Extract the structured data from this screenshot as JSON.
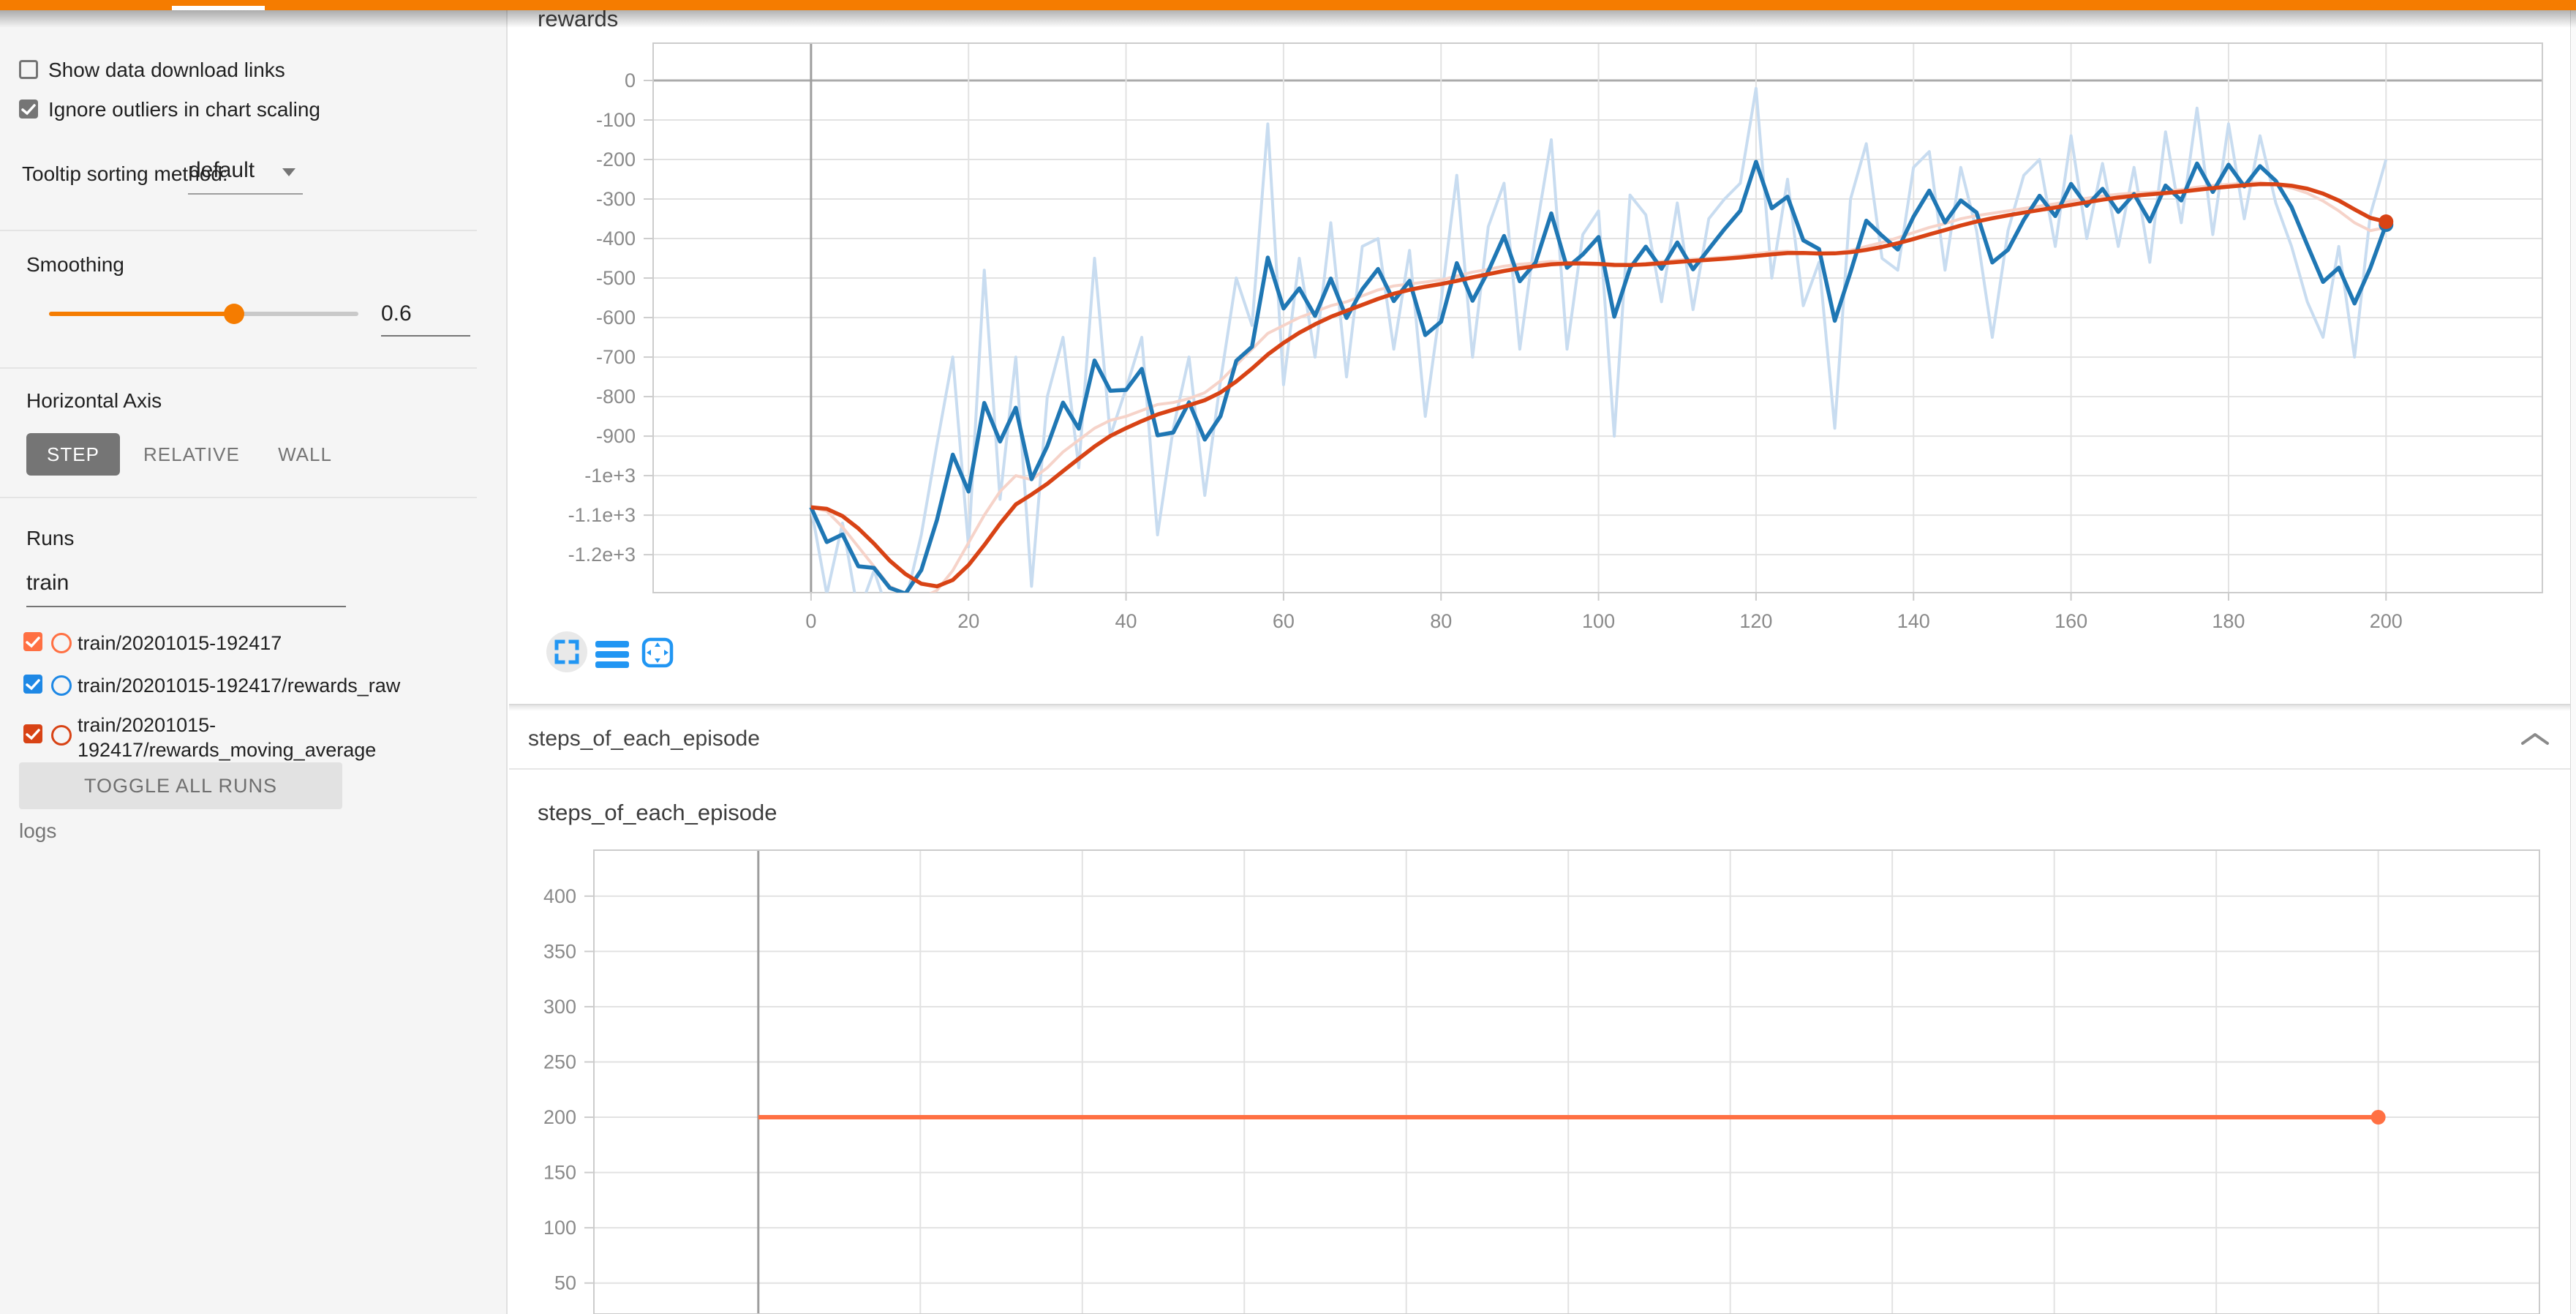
{
  "app": {
    "accent_color": "#f57c00"
  },
  "sidebar": {
    "checkboxes": [
      {
        "label": "Show data download links",
        "checked": false
      },
      {
        "label": "Ignore outliers in chart scaling",
        "checked": true
      }
    ],
    "tooltip_sorting": {
      "label": "Tooltip sorting method:",
      "value": "default"
    },
    "smoothing": {
      "label": "Smoothing",
      "value": "0.6"
    },
    "horizontal_axis": {
      "label": "Horizontal Axis",
      "options": [
        "STEP",
        "RELATIVE",
        "WALL"
      ],
      "selected": "STEP"
    },
    "runs": {
      "label": "Runs",
      "filter_value": "train",
      "items": [
        {
          "label": "train/20201015-192417",
          "color": "#ff7043",
          "checked": true
        },
        {
          "label": "train/20201015-192417/rewards_raw",
          "color": "#1e88e5",
          "checked": true
        },
        {
          "label": "train/20201015-192417/rewards_moving_average",
          "color": "#d84315",
          "checked": true
        }
      ],
      "toggle_all_label": "TOGGLE ALL RUNS",
      "footer": "logs"
    }
  },
  "main": {
    "section_header": "steps_of_each_episode"
  },
  "chart_data": [
    {
      "type": "line",
      "title": "rewards",
      "xlabel": "step",
      "ylabel": "",
      "xlim": [
        -20.05,
        219.85
      ],
      "ylim": [
        -1296,
        94.4
      ],
      "grid": true,
      "smoothing": 0.6,
      "x_dark": 0,
      "y_dark": 0,
      "x_tick_values": [
        0,
        20,
        40,
        60,
        80,
        100,
        120,
        140,
        160,
        180,
        200
      ],
      "x_tick_labels": [
        "0",
        "20",
        "40",
        "60",
        "80",
        "100",
        "120",
        "140",
        "160",
        "180",
        "200"
      ],
      "y_tick_values": [
        0,
        -100,
        -200,
        -300,
        -400,
        -500,
        -600,
        -700,
        -800,
        -900,
        -1000,
        -1100,
        -1200
      ],
      "y_tick_labels": [
        "0",
        "-100",
        "-200",
        "-300",
        "-400",
        "-500",
        "-600",
        "-700",
        "-800",
        "-900",
        "-1e+3",
        "-1.1e+3",
        "-1.2e+3"
      ],
      "series": [
        {
          "name": "train/20201015-192417/rewards_raw",
          "color": "#1f77b4",
          "light_color": "#c8dcf0",
          "end_dot": true,
          "x_start": 0,
          "x_step": 2,
          "y": [
            -1080,
            -1300,
            -1120,
            -1350,
            -1240,
            -1360,
            -1320,
            -1150,
            -920,
            -700,
            -1180,
            -480,
            -1060,
            -700,
            -1280,
            -800,
            -650,
            -980,
            -450,
            -900,
            -780,
            -650,
            -1150,
            -880,
            -700,
            -1050,
            -760,
            -500,
            -620,
            -110,
            -770,
            -450,
            -700,
            -360,
            -750,
            -420,
            -400,
            -680,
            -430,
            -850,
            -560,
            -240,
            -700,
            -370,
            -260,
            -680,
            -390,
            -150,
            -680,
            -390,
            -330,
            -900,
            -290,
            -340,
            -560,
            -310,
            -580,
            -350,
            -300,
            -260,
            -20,
            -500,
            -250,
            -570,
            -460,
            -880,
            -300,
            -160,
            -450,
            -480,
            -220,
            -180,
            -480,
            -220,
            -380,
            -650,
            -380,
            -240,
            -200,
            -420,
            -140,
            -400,
            -210,
            -420,
            -220,
            -460,
            -130,
            -360,
            -70,
            -390,
            -110,
            -350,
            -140,
            -310,
            -420,
            -560,
            -650,
            -420,
            -700,
            -340,
            -200
          ]
        },
        {
          "name": "train/20201015-192417/rewards_moving_average",
          "color": "#d84315",
          "light_color": "#f6d3c9",
          "end_dot": true,
          "x_start": 0,
          "x_step": 2,
          "y": [
            -1080,
            -1090,
            -1130,
            -1180,
            -1230,
            -1280,
            -1300,
            -1310,
            -1290,
            -1240,
            -1170,
            -1100,
            -1040,
            -1000,
            -1010,
            -980,
            -940,
            -910,
            -880,
            -860,
            -850,
            -835,
            -820,
            -815,
            -805,
            -790,
            -760,
            -720,
            -680,
            -640,
            -620,
            -600,
            -585,
            -570,
            -560,
            -545,
            -530,
            -520,
            -515,
            -510,
            -505,
            -495,
            -485,
            -478,
            -470,
            -465,
            -462,
            -458,
            -460,
            -463,
            -466,
            -470,
            -468,
            -463,
            -458,
            -455,
            -452,
            -450,
            -447,
            -443,
            -438,
            -434,
            -432,
            -436,
            -440,
            -437,
            -430,
            -420,
            -410,
            -398,
            -385,
            -372,
            -362,
            -350,
            -342,
            -336,
            -330,
            -324,
            -318,
            -312,
            -305,
            -298,
            -292,
            -288,
            -285,
            -283,
            -280,
            -276,
            -270,
            -266,
            -263,
            -260,
            -258,
            -263,
            -272,
            -285,
            -305,
            -330,
            -360,
            -380,
            -372
          ]
        }
      ]
    },
    {
      "type": "line",
      "title": "steps_of_each_episode",
      "xlabel": "step",
      "ylabel": "",
      "xlim": [
        -20.3,
        219.9
      ],
      "ylim": [
        22,
        441.6
      ],
      "grid": true,
      "smoothing": 0.6,
      "x_dark": 0,
      "y_dark": null,
      "x_tick_values": [
        0,
        20,
        40,
        60,
        80,
        100,
        120,
        140,
        160,
        180,
        200
      ],
      "x_tick_labels": null,
      "y_tick_values": [
        400,
        350,
        300,
        250,
        200,
        150,
        100,
        50
      ],
      "y_tick_labels": [
        "400",
        "350",
        "300",
        "250",
        "200",
        "150",
        "100",
        "50"
      ],
      "series": [
        {
          "name": "train/20201015-192417",
          "color": "#ff7043",
          "light_color": "#ff7043",
          "end_dot": true,
          "no_smooth": true,
          "x_start": 0,
          "x_step": 200,
          "y": [
            200,
            200
          ]
        }
      ]
    }
  ]
}
